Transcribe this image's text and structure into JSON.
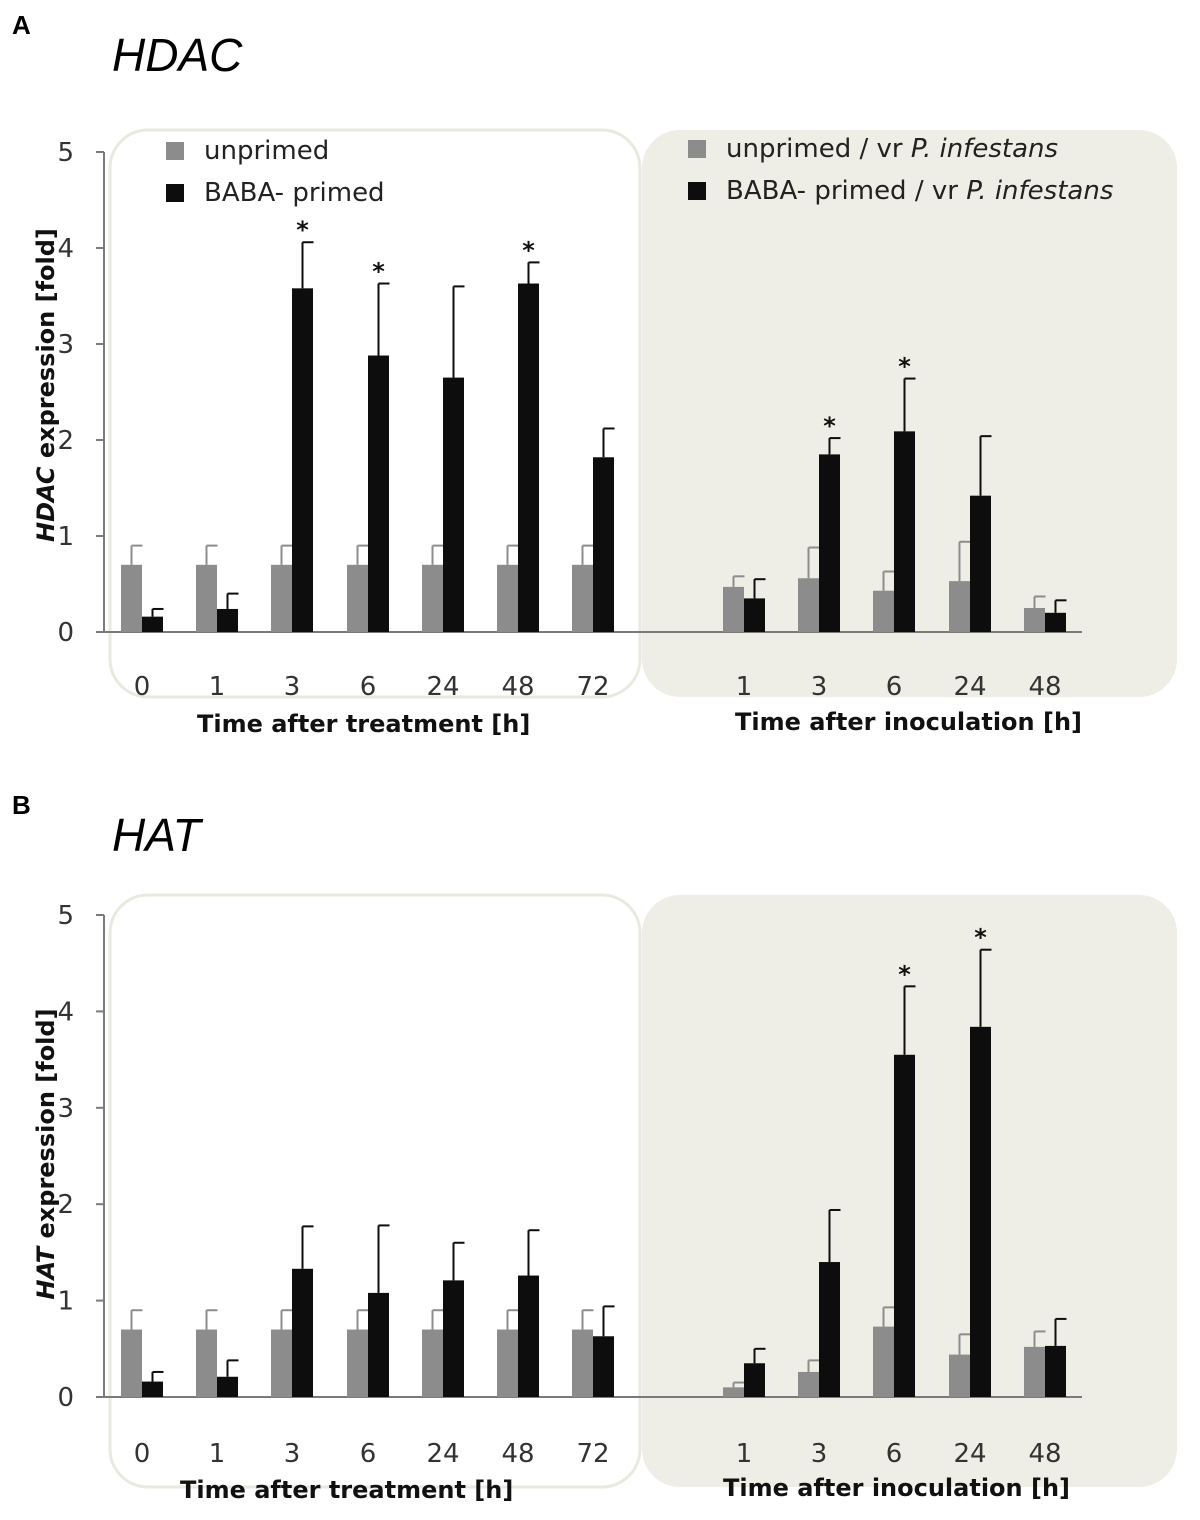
{
  "colors": {
    "unprimed": "#8c8c8c",
    "primed": "#0d0d0d",
    "inoculation_background": "#eeeee6",
    "treatment_border": "#e9e9df"
  },
  "legend": {
    "treatment": {
      "unprimed": "unprimed",
      "primed": "BABA- primed"
    },
    "inoculation": {
      "unprimed_prefix": "unprimed / vr ",
      "primed_prefix": "BABA- primed / vr ",
      "pathogen": "P. infestans"
    }
  },
  "chart_data": [
    {
      "panel": "A",
      "type": "bar",
      "title": "HDAC",
      "ylabel_italic": "HDAC",
      "ylabel_rest": " expression [fold]",
      "ylim": [
        0,
        5
      ],
      "yticks": [
        "0",
        "1",
        "2",
        "3",
        "4",
        "5"
      ],
      "groups": [
        {
          "xlabel": "Time after treatment [h]",
          "categories": [
            "0",
            "1",
            "3",
            "6",
            "24",
            "48",
            "72"
          ],
          "series": [
            {
              "name": "unprimed",
              "values": [
                0.7,
                0.7,
                0.7,
                0.7,
                0.7,
                0.7,
                0.7
              ],
              "errors": [
                0.2,
                0.2,
                0.2,
                0.2,
                0.2,
                0.2,
                0.2
              ]
            },
            {
              "name": "BABA- primed",
              "values": [
                0.16,
                0.24,
                3.58,
                2.88,
                2.65,
                3.63,
                1.82
              ],
              "errors": [
                0.08,
                0.16,
                0.48,
                0.75,
                0.95,
                0.22,
                0.3
              ]
            }
          ],
          "significant": [
            "",
            "",
            "*",
            "*",
            "",
            "*",
            ""
          ]
        },
        {
          "xlabel": "Time after inoculation [h]",
          "categories": [
            "1",
            "3",
            "6",
            "24",
            "48"
          ],
          "series": [
            {
              "name": "unprimed / vr P. infestans",
              "values": [
                0.47,
                0.56,
                0.43,
                0.53,
                0.25
              ],
              "errors": [
                0.11,
                0.32,
                0.2,
                0.41,
                0.12
              ]
            },
            {
              "name": "BABA- primed / vr P. infestans",
              "values": [
                0.35,
                1.85,
                2.09,
                1.42,
                0.2
              ],
              "errors": [
                0.2,
                0.17,
                0.55,
                0.62,
                0.13
              ]
            }
          ],
          "significant": [
            "",
            "*",
            "*",
            "",
            ""
          ]
        }
      ]
    },
    {
      "panel": "B",
      "type": "bar",
      "title": "HAT",
      "ylabel_italic": "HAT",
      "ylabel_rest": " expression [fold]",
      "ylim": [
        0,
        5
      ],
      "yticks": [
        "0",
        "1",
        "2",
        "3",
        "4",
        "5"
      ],
      "groups": [
        {
          "xlabel": "Time after treatment [h]",
          "categories": [
            "0",
            "1",
            "3",
            "6",
            "24",
            "48",
            "72"
          ],
          "series": [
            {
              "name": "unprimed",
              "values": [
                0.7,
                0.7,
                0.7,
                0.7,
                0.7,
                0.7,
                0.7
              ],
              "errors": [
                0.2,
                0.2,
                0.2,
                0.2,
                0.2,
                0.2,
                0.2
              ]
            },
            {
              "name": "BABA- primed",
              "values": [
                0.16,
                0.21,
                1.33,
                1.08,
                1.21,
                1.26,
                0.63
              ],
              "errors": [
                0.1,
                0.17,
                0.44,
                0.7,
                0.39,
                0.47,
                0.31
              ]
            }
          ],
          "significant": [
            "",
            "",
            "",
            "",
            "",
            "",
            ""
          ]
        },
        {
          "xlabel": "Time after inoculation [h]",
          "categories": [
            "1",
            "3",
            "6",
            "24",
            "48"
          ],
          "series": [
            {
              "name": "unprimed / vr P. infestans",
              "values": [
                0.1,
                0.26,
                0.73,
                0.44,
                0.52
              ],
              "errors": [
                0.05,
                0.12,
                0.2,
                0.21,
                0.16
              ]
            },
            {
              "name": "BABA- primed / vr P. infestans",
              "values": [
                0.35,
                1.4,
                3.55,
                3.84,
                0.53
              ],
              "errors": [
                0.15,
                0.54,
                0.71,
                0.8,
                0.28
              ]
            }
          ],
          "significant": [
            "",
            "",
            "*",
            "*",
            ""
          ]
        }
      ]
    }
  ]
}
